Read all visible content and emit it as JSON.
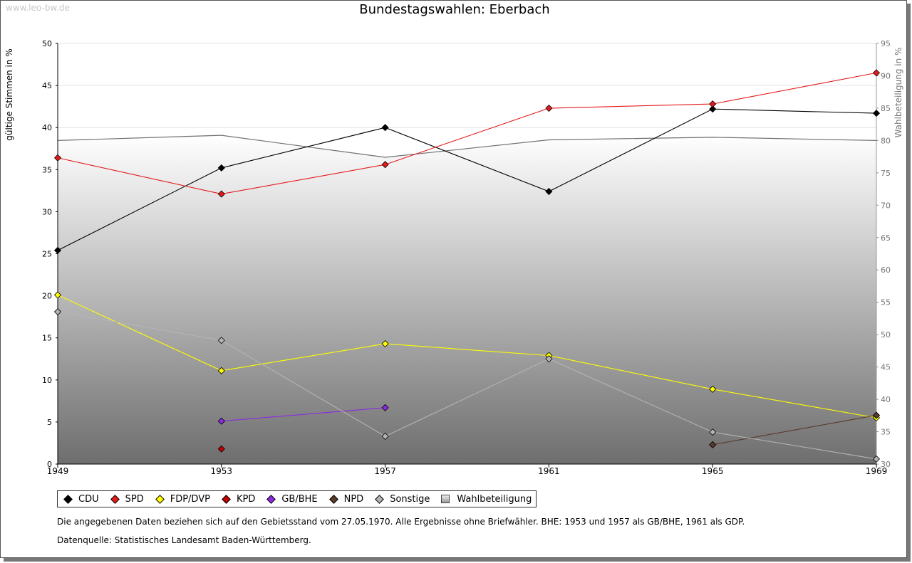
{
  "watermark": "www.leo-bw.de",
  "chart_data": {
    "type": "line",
    "title": "Bundestagswahlen: Eberbach",
    "ylabel": "gültige Stimmen in %",
    "y2label": "Wahlbeteiligung in %",
    "x": [
      1949,
      1953,
      1957,
      1961,
      1965,
      1969
    ],
    "ylim": [
      0,
      50
    ],
    "yticks": [
      0,
      5,
      10,
      15,
      20,
      25,
      30,
      35,
      40,
      45,
      50
    ],
    "y2lim": [
      30,
      95
    ],
    "y2ticks": [
      30,
      35,
      40,
      45,
      50,
      55,
      60,
      65,
      70,
      75,
      80,
      85,
      90,
      95
    ],
    "series": [
      {
        "name": "CDU",
        "color": "#000000",
        "values": [
          25.4,
          35.2,
          40.0,
          32.4,
          42.2,
          41.7
        ]
      },
      {
        "name": "SPD",
        "color": "#e41a1c",
        "values": [
          36.4,
          32.1,
          35.6,
          42.3,
          42.8,
          46.5
        ]
      },
      {
        "name": "FDP/DVP",
        "color": "#ffff00",
        "values": [
          20.1,
          11.1,
          14.3,
          12.9,
          8.9,
          5.5
        ]
      },
      {
        "name": "KPD",
        "color": "#c00000",
        "values": [
          null,
          1.8,
          null,
          null,
          null,
          null
        ]
      },
      {
        "name": "GB/BHE",
        "color": "#8a2be2",
        "values": [
          null,
          5.1,
          6.7,
          null,
          null,
          null
        ]
      },
      {
        "name": "NPD",
        "color": "#5a3a2a",
        "values": [
          null,
          null,
          null,
          null,
          2.3,
          5.8
        ]
      },
      {
        "name": "Sonstige",
        "color": "#b4b4b4",
        "values": [
          18.1,
          14.7,
          3.3,
          12.5,
          3.8,
          0.6
        ]
      }
    ],
    "turnout": {
      "name": "Wahlbeteiligung",
      "values": [
        80.0,
        80.8,
        77.4,
        80.1,
        80.5,
        80.0
      ]
    }
  },
  "legend": [
    {
      "label": "CDU",
      "color": "#000000",
      "kind": "marker"
    },
    {
      "label": "SPD",
      "color": "#e41a1c",
      "kind": "marker"
    },
    {
      "label": "FDP/DVP",
      "color": "#ffff00",
      "kind": "marker"
    },
    {
      "label": "KPD",
      "color": "#c00000",
      "kind": "marker"
    },
    {
      "label": "GB/BHE",
      "color": "#8a2be2",
      "kind": "marker"
    },
    {
      "label": "NPD",
      "color": "#5a3a2a",
      "kind": "marker"
    },
    {
      "label": "Sonstige",
      "color": "#b4b4b4",
      "kind": "marker"
    },
    {
      "label": "Wahlbeteiligung",
      "color": "#999999",
      "kind": "square"
    }
  ],
  "notes": {
    "line1": "Die angegebenen Daten beziehen sich auf den Gebietsstand vom 27.05.1970. Alle Ergebnisse ohne Briefwähler. BHE: 1953 und 1957 als GB/BHE, 1961 als GDP.",
    "line2": "Datenquelle: Statistisches Landesamt Baden-Württemberg."
  }
}
